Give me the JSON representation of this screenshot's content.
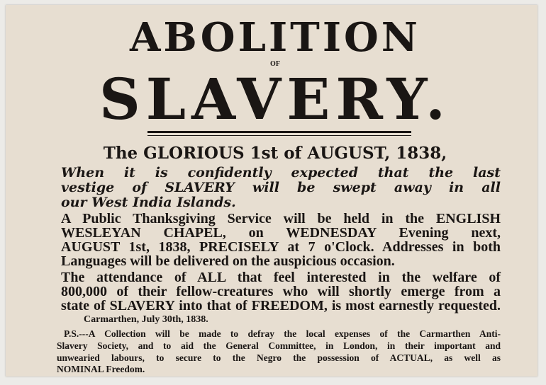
{
  "poster": {
    "title_line1": "ABOLITION",
    "title_of": "OF",
    "title_line2": "SLAVERY.",
    "date_heading": "The GLORIOUS 1st of AUGUST, 1838,",
    "italic_lines": [
      "When it is confidently expected that the last",
      "vestige of SLAVERY will be swept away in all",
      "our West India Islands."
    ],
    "service_lines": [
      "A Public Thanksgiving Service will be held in the ENGLISH",
      "WESLEYAN CHAPEL, on WEDNESDAY Evening next,",
      "AUGUST 1st, 1838, PRECISELY at 7 o'Clock.  Addresses in both",
      "Languages will be delivered on the auspicious occasion."
    ],
    "attendance_lines": [
      "The attendance of ALL that feel interested in the welfare of",
      "800,000 of their fellow-creatures who will shortly emerge from a",
      "state of SLAVERY into that of FREEDOM, is most earnestly requested."
    ],
    "place_date": "Carmarthen, July 30th, 1838.",
    "ps_lines": [
      "P.S.---A Collection will be made to defray the local expenses of the Carmarthen Anti-",
      "Slavery Society, and to aid the General Committee, in London, in their important and",
      "unwearied labours, to secure to the Negro the possession of ACTUAL, as well as",
      "NOMINAL Freedom."
    ]
  }
}
